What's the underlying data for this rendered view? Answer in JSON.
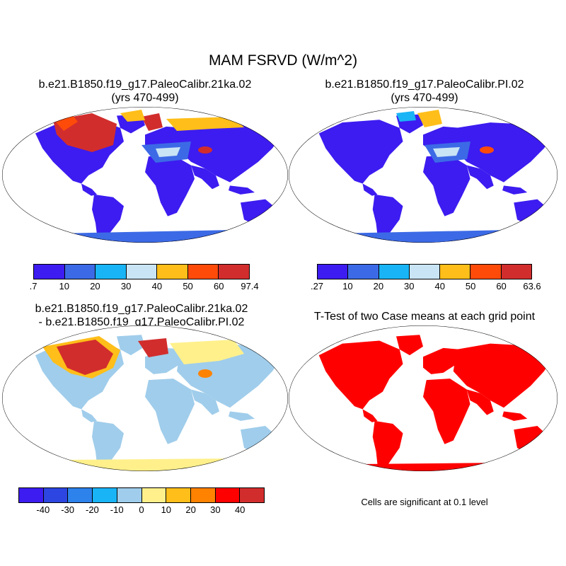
{
  "title": "MAM FSRVD (W/m^2)",
  "panels": [
    {
      "title_line1": "b.e21.B1850.f19_g17.PaleoCalibr.21ka.02",
      "title_line2": "(yrs 470-499)"
    },
    {
      "title_line1": "b.e21.B1850.f19_g17.PaleoCalibr.PI.02",
      "title_line2": "(yrs 470-499)"
    },
    {
      "title_line1": "b.e21.B1850.f19_g17.PaleoCalibr.21ka.02",
      "title_line2": "- b.e21.B1850.f19_g17.PaleoCalibr.PI.02"
    },
    {
      "title_line1": "T-Test of two Case means at each grid point"
    }
  ],
  "colorbars": {
    "case1": {
      "labels": [
        ".7",
        "10",
        "20",
        "30",
        "40",
        "50",
        "60",
        "97.4"
      ],
      "colors": [
        "#3c1cf0",
        "#3c6ae6",
        "#19b4f5",
        "#c8e4f5",
        "#ffbe19",
        "#ff4b0a",
        "#d22d2d"
      ]
    },
    "case2": {
      "labels": [
        ".27",
        "10",
        "20",
        "30",
        "40",
        "50",
        "60",
        "63.6"
      ],
      "colors": [
        "#3c1cf0",
        "#3c6ae6",
        "#19b4f5",
        "#c8e4f5",
        "#ffbe19",
        "#ff4b0a",
        "#d22d2d"
      ]
    },
    "diff": {
      "labels": [
        "-40",
        "-30",
        "-20",
        "-10",
        "0",
        "10",
        "20",
        "30",
        "40"
      ],
      "colors": [
        "#3c1cf0",
        "#2d46e1",
        "#2d82eb",
        "#19b4f5",
        "#a0cdeb",
        "#fff08c",
        "#ffbe19",
        "#ff8200",
        "#ff0000",
        "#d22d2d"
      ]
    }
  },
  "significance_note": "Cells are significant at 0.1 level",
  "map_colors": {
    "ocean": "#ffffff",
    "land_low": "#3c1cf0",
    "land_mid": "#3c6ae6",
    "diff_land": "#a0cdeb",
    "diff_warm": "#fff08c",
    "sig": "#ff0000"
  }
}
